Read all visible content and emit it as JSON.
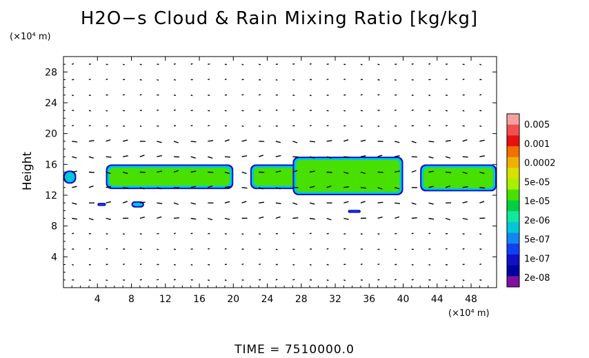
{
  "chart_data": {
    "type": "heatmap",
    "title": "H2O−s Cloud & Rain Mixing Ratio [kg/kg]",
    "xlabel_unit": "(×10⁴ m)",
    "ylabel": "Height",
    "ylabel_unit": "(×10⁴ m)",
    "footer": "TIME  =  7510000.0",
    "xlim": [
      0,
      51
    ],
    "ylim": [
      0,
      30
    ],
    "xticks": [
      4,
      8,
      12,
      16,
      20,
      24,
      28,
      32,
      36,
      40,
      44,
      48
    ],
    "yticks": [
      4,
      8,
      12,
      16,
      20,
      24,
      28
    ],
    "colorbar": {
      "labels": [
        "0.005",
        "0.001",
        "0.0002",
        "5e-05",
        "1e-05",
        "2e-06",
        "5e-07",
        "1e-07",
        "2e-08"
      ],
      "colors": [
        "#f7a0a0",
        "#f05050",
        "#e81010",
        "#f07000",
        "#f0b000",
        "#d8e000",
        "#a8f000",
        "#48e000",
        "#00d040",
        "#10e8a0",
        "#00c8d8",
        "#1088f0",
        "#1040f0",
        "#1010c8",
        "#0000a0",
        "#8010a0"
      ]
    },
    "cloud_bands": [
      {
        "x": [
          0,
          1.5
        ],
        "y": [
          13.5,
          15.2
        ]
      },
      {
        "x": [
          5,
          20
        ],
        "y": [
          12.8,
          16
        ]
      },
      {
        "x": [
          22,
          28
        ],
        "y": [
          12.8,
          16
        ]
      },
      {
        "x": [
          27,
          40
        ],
        "y": [
          12,
          17
        ]
      },
      {
        "x": [
          42,
          51
        ],
        "y": [
          12.5,
          16
        ]
      },
      {
        "x": [
          4,
          5
        ],
        "y": [
          10.6,
          11
        ]
      },
      {
        "x": [
          8,
          9.5
        ],
        "y": [
          10.4,
          11.2
        ]
      },
      {
        "x": [
          33.5,
          35
        ],
        "y": [
          9.7,
          10.1
        ]
      }
    ]
  }
}
